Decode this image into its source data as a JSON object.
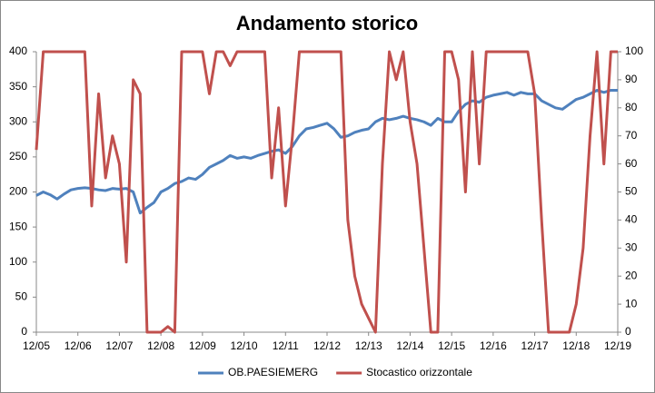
{
  "chart_data": {
    "type": "line",
    "title": "Andamento storico",
    "categories": [
      "12/05",
      null,
      null,
      null,
      null,
      null,
      "12/06",
      null,
      null,
      null,
      null,
      null,
      "12/07",
      null,
      null,
      null,
      null,
      null,
      "12/08",
      null,
      null,
      null,
      null,
      null,
      "12/09",
      null,
      null,
      null,
      null,
      null,
      "12/10",
      null,
      null,
      null,
      null,
      null,
      "12/11",
      null,
      null,
      null,
      null,
      null,
      "12/12",
      null,
      null,
      null,
      null,
      null,
      "12/13",
      null,
      null,
      null,
      null,
      null,
      "12/14",
      null,
      null,
      null,
      null,
      null,
      "12/15",
      null,
      null,
      null,
      null,
      null,
      "12/16",
      null,
      null,
      null,
      null,
      null,
      "12/17",
      null,
      null,
      null,
      null,
      null,
      "12/18",
      null,
      null,
      null,
      null,
      null,
      "12/19"
    ],
    "series": [
      {
        "name": "OB.PAESIEMERG",
        "color": "#4f81bd",
        "values": [
          195,
          200,
          196,
          190,
          197,
          203,
          205,
          206,
          205,
          203,
          202,
          205,
          204,
          205,
          200,
          170,
          178,
          185,
          200,
          205,
          212,
          215,
          220,
          218,
          225,
          235,
          240,
          245,
          252,
          248,
          250,
          248,
          252,
          255,
          258,
          260,
          255,
          265,
          280,
          290,
          292,
          295,
          298,
          290,
          278,
          280,
          285,
          288,
          290,
          300,
          305,
          303,
          305,
          308,
          305,
          303,
          300,
          295,
          305,
          300,
          300,
          315,
          325,
          330,
          328,
          335,
          338,
          340,
          342,
          338,
          342,
          340,
          340,
          330,
          325,
          320,
          318,
          325,
          332,
          335,
          340,
          345,
          342,
          345,
          345
        ]
      },
      {
        "name": "Stocastico orizzontale",
        "color": "#c0504d",
        "axis": "y2",
        "values": [
          65,
          100,
          100,
          100,
          100,
          100,
          100,
          100,
          45,
          85,
          55,
          70,
          60,
          25,
          90,
          85,
          0,
          0,
          0,
          2,
          0,
          100,
          100,
          100,
          100,
          85,
          100,
          100,
          95,
          100,
          100,
          100,
          100,
          100,
          55,
          80,
          45,
          70,
          100,
          100,
          100,
          100,
          100,
          100,
          100,
          40,
          20,
          10,
          5,
          0,
          60,
          100,
          90,
          100,
          75,
          60,
          30,
          0,
          0,
          100,
          100,
          90,
          50,
          100,
          60,
          100,
          100,
          100,
          100,
          100,
          100,
          100,
          85,
          40,
          0,
          0,
          0,
          0,
          10,
          30,
          70,
          100,
          60,
          100,
          100
        ]
      }
    ],
    "ylim": [
      0,
      400
    ],
    "yticks": [
      0,
      50,
      100,
      150,
      200,
      250,
      300,
      350,
      400
    ],
    "y2lim": [
      0,
      100
    ],
    "y2ticks": [
      0,
      10,
      20,
      30,
      40,
      50,
      60,
      70,
      80,
      90,
      100
    ],
    "grid": false,
    "legend": "bottom"
  }
}
